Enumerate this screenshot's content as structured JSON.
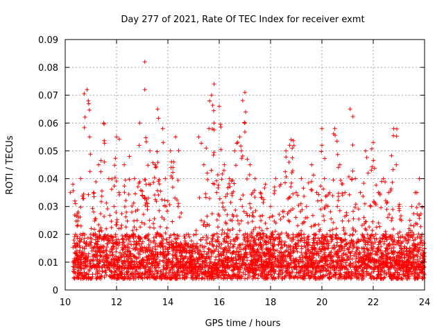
{
  "chart_data": {
    "type": "scatter",
    "title": "Day 277 of 2021, Rate Of TEC Index for receiver exmt",
    "xlabel": "GPS time / hours",
    "ylabel": "ROTI / TECUs",
    "xlim": [
      10,
      24
    ],
    "ylim": [
      0,
      0.09
    ],
    "x_ticks": [
      10,
      12,
      14,
      16,
      18,
      20,
      22,
      24
    ],
    "x_tick_labels": [
      "10",
      "12",
      "14",
      "16",
      "18",
      "20",
      "22",
      "24"
    ],
    "y_ticks": [
      0,
      0.01,
      0.02,
      0.03,
      0.04,
      0.05,
      0.06,
      0.07,
      0.08,
      0.09
    ],
    "y_tick_labels": [
      "0",
      "0.01",
      "0.02",
      "0.03",
      "0.04",
      "0.05",
      "0.06",
      "0.07",
      "0.08",
      "0.09"
    ],
    "grid": true,
    "marker": "+",
    "marker_color": "#ff0000",
    "series": [
      {
        "name": "ROTI",
        "x": [
          10.2,
          10.3,
          10.3,
          10.4,
          10.4,
          10.5,
          10.6,
          10.8,
          10.85,
          10.9,
          10.95,
          11.0,
          11.1,
          11.2,
          11.3,
          11.4,
          11.5,
          11.6,
          11.7,
          11.8,
          11.9,
          12.0,
          12.0,
          12.1,
          12.2,
          12.3,
          12.4,
          12.5,
          12.6,
          12.7,
          12.8,
          12.9,
          13.0,
          13.1,
          13.1,
          13.2,
          13.3,
          13.4,
          13.5,
          13.6,
          13.7,
          13.8,
          13.9,
          14.0,
          14.1,
          14.2,
          14.3,
          14.4,
          14.5,
          14.6,
          14.7,
          14.8,
          14.9,
          15.0,
          15.1,
          15.2,
          15.3,
          15.4,
          15.5,
          15.6,
          15.7,
          15.8,
          15.8,
          15.9,
          16.0,
          16.1,
          16.2,
          16.3,
          16.4,
          16.5,
          16.6,
          16.7,
          16.8,
          16.9,
          17.0,
          17.0,
          17.1,
          17.2,
          17.3,
          17.4,
          17.5,
          17.6,
          17.7,
          17.8,
          17.9,
          18.0,
          18.1,
          18.2,
          18.3,
          18.4,
          18.5,
          18.6,
          18.7,
          18.8,
          18.9,
          19.0,
          19.1,
          19.2,
          19.3,
          19.4,
          19.5,
          19.6,
          19.7,
          19.8,
          19.9,
          20.0,
          20.0,
          20.1,
          20.2,
          20.3,
          20.4,
          20.5,
          20.6,
          20.7,
          20.8,
          20.9,
          21.0,
          21.1,
          21.2,
          21.3,
          21.4,
          21.5,
          21.6,
          21.7,
          21.8,
          21.9,
          22.0,
          22.0,
          22.1,
          22.2,
          22.3,
          22.4,
          22.5,
          22.6,
          22.7,
          22.8,
          22.9,
          23.0,
          23.0,
          23.1,
          23.2,
          23.3,
          23.4,
          23.5,
          23.6,
          23.7,
          23.8,
          23.9,
          24.0
        ],
        "y": [
          0.035,
          0.01,
          0.038,
          0.02,
          0.006,
          0.028,
          0.04,
          0.012,
          0.072,
          0.068,
          0.055,
          0.02,
          0.035,
          0.008,
          0.045,
          0.012,
          0.06,
          0.022,
          0.04,
          0.01,
          0.03,
          0.055,
          0.015,
          0.035,
          0.012,
          0.045,
          0.02,
          0.048,
          0.01,
          0.04,
          0.025,
          0.06,
          0.015,
          0.082,
          0.072,
          0.03,
          0.05,
          0.012,
          0.045,
          0.065,
          0.02,
          0.058,
          0.04,
          0.01,
          0.05,
          0.015,
          0.055,
          0.03,
          0.01,
          0.015,
          0.012,
          0.02,
          0.01,
          0.015,
          0.02,
          0.055,
          0.025,
          0.045,
          0.012,
          0.058,
          0.07,
          0.074,
          0.06,
          0.035,
          0.066,
          0.02,
          0.045,
          0.012,
          0.04,
          0.025,
          0.05,
          0.015,
          0.055,
          0.03,
          0.071,
          0.06,
          0.02,
          0.045,
          0.015,
          0.04,
          0.012,
          0.035,
          0.02,
          0.038,
          0.015,
          0.03,
          0.012,
          0.04,
          0.02,
          0.038,
          0.012,
          0.05,
          0.025,
          0.054,
          0.015,
          0.035,
          0.01,
          0.04,
          0.02,
          0.03,
          0.012,
          0.045,
          0.02,
          0.035,
          0.015,
          0.058,
          0.052,
          0.04,
          0.02,
          0.035,
          0.012,
          0.058,
          0.03,
          0.045,
          0.015,
          0.035,
          0.012,
          0.065,
          0.02,
          0.04,
          0.015,
          0.035,
          0.012,
          0.05,
          0.042,
          0.03,
          0.015,
          0.053,
          0.02,
          0.035,
          0.012,
          0.04,
          0.02,
          0.035,
          0.015,
          0.058,
          0.045,
          0.03,
          0.012,
          0.025,
          0.015,
          0.02,
          0.01,
          0.03,
          0.015,
          0.035,
          0.04,
          0.02,
          0.01
        ]
      }
    ],
    "baseline_band": {
      "description": "dense cluster of ROTI values",
      "x_range": [
        10.3,
        24.0
      ],
      "y_range": [
        0.004,
        0.02
      ]
    }
  }
}
